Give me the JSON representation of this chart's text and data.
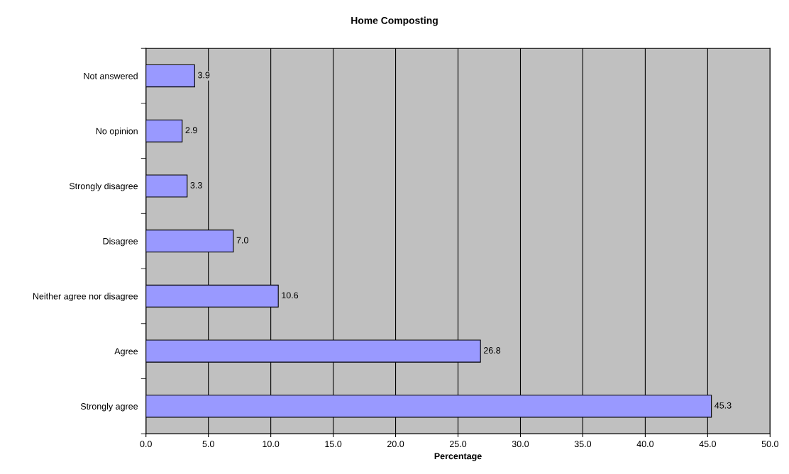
{
  "chart_data": {
    "type": "bar",
    "orientation": "horizontal",
    "title": "Home Composting",
    "xlabel": "Percentage",
    "categories": [
      "Not answered",
      "No opinion",
      "Strongly disagree",
      "Disagree",
      "Neither agree nor disagree",
      "Agree",
      "Strongly agree"
    ],
    "values": [
      3.9,
      2.9,
      3.3,
      7.0,
      10.6,
      26.8,
      45.3
    ],
    "value_labels": [
      "3.9",
      "2.9",
      "3.3",
      "7.0",
      "10.6",
      "26.8",
      "45.3"
    ],
    "color": "#9999ff",
    "xlim": [
      0,
      50
    ],
    "xticks": [
      {
        "value": 0,
        "label": "0.0"
      },
      {
        "value": 5,
        "label": "5.0"
      },
      {
        "value": 10,
        "label": "10.0"
      },
      {
        "value": 15,
        "label": "15.0"
      },
      {
        "value": 20,
        "label": "20.0"
      },
      {
        "value": 25,
        "label": "25.0"
      },
      {
        "value": 30,
        "label": "30.0"
      },
      {
        "value": 35,
        "label": "35.0"
      },
      {
        "value": 40,
        "label": "40.0"
      },
      {
        "value": 45,
        "label": "45.0"
      },
      {
        "value": 50,
        "label": "50.0"
      }
    ],
    "grid": "x"
  }
}
